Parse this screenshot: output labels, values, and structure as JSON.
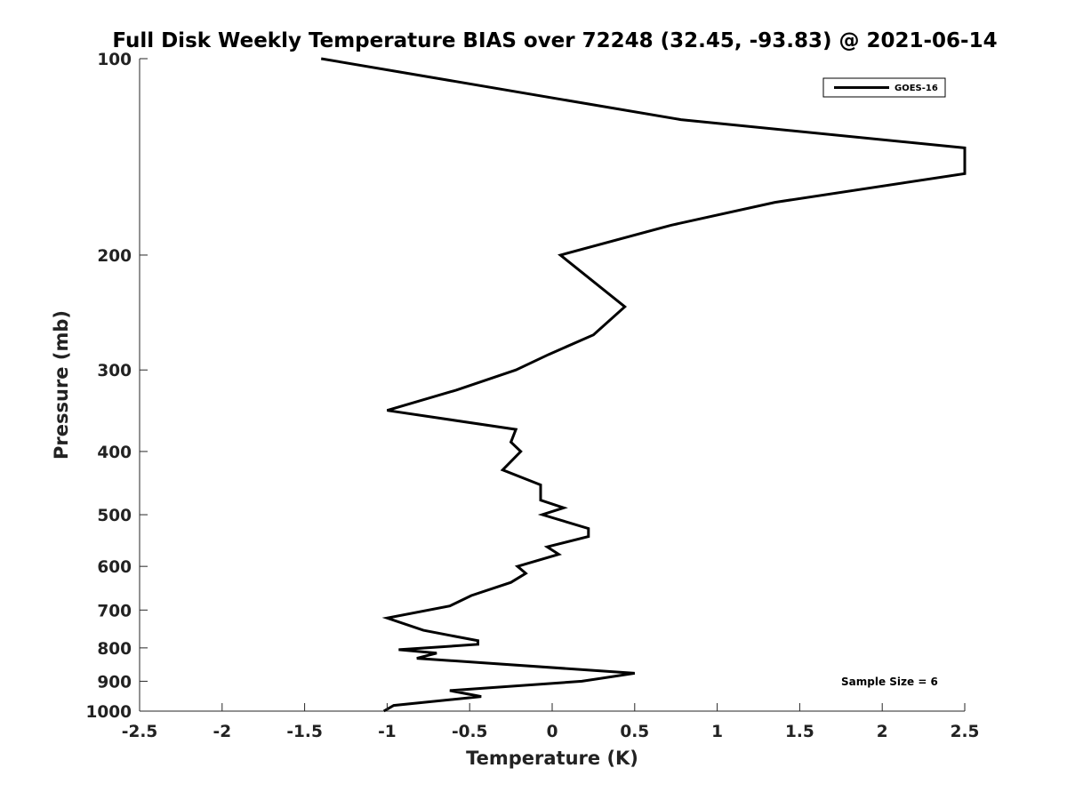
{
  "chart_data": {
    "type": "line",
    "title": "Full Disk Weekly Temperature BIAS over 72248 (32.45, -93.83) @ 2021-06-14",
    "xlabel": "Temperature (K)",
    "ylabel": "Pressure (mb)",
    "xlim": [
      -2.5,
      2.5
    ],
    "ylim": [
      1000,
      100
    ],
    "y_scale": "log",
    "y_reversed": true,
    "grid": false,
    "legend_position": "top-right",
    "x_ticks": [
      "-2.5",
      "-2",
      "-1.5",
      "-1",
      "-0.5",
      "0",
      "0.5",
      "1",
      "1.5",
      "2",
      "2.5"
    ],
    "x_tick_values": [
      -2.5,
      -2,
      -1.5,
      -1,
      -0.5,
      0,
      0.5,
      1,
      1.5,
      2,
      2.5
    ],
    "y_ticks": [
      "100",
      "200",
      "300",
      "400",
      "500",
      "600",
      "700",
      "800",
      "900",
      "1000"
    ],
    "y_tick_values": [
      100,
      200,
      300,
      400,
      500,
      600,
      700,
      800,
      900,
      1000
    ],
    "annotation": "Sample Size = 6",
    "series": [
      {
        "name": "GOES-16",
        "color": "#000000",
        "x": [
          -1.4,
          0.78,
          2.5,
          2.5,
          1.35,
          0.72,
          0.05,
          0.44,
          0.25,
          -0.02,
          -0.22,
          -0.58,
          -1.0,
          -0.22,
          -0.25,
          -0.19,
          -0.3,
          -0.07,
          -0.07,
          0.07,
          -0.06,
          0.22,
          0.22,
          -0.03,
          0.04,
          -0.21,
          -0.16,
          -0.25,
          -0.49,
          -0.62,
          -1.0,
          -0.78,
          -0.45,
          -0.45,
          -0.93,
          -0.7,
          -0.82,
          0.5,
          0.18,
          -0.62,
          -0.43,
          -0.96,
          -1.02
        ],
        "y": [
          100,
          124,
          137,
          150,
          166,
          180,
          200,
          240,
          265,
          284,
          300,
          322,
          346,
          370,
          387,
          400,
          427,
          450,
          475,
          488,
          500,
          525,
          540,
          560,
          575,
          600,
          615,
          635,
          665,
          690,
          720,
          752,
          780,
          790,
          805,
          815,
          830,
          875,
          900,
          930,
          950,
          980,
          1000
        ]
      }
    ]
  }
}
